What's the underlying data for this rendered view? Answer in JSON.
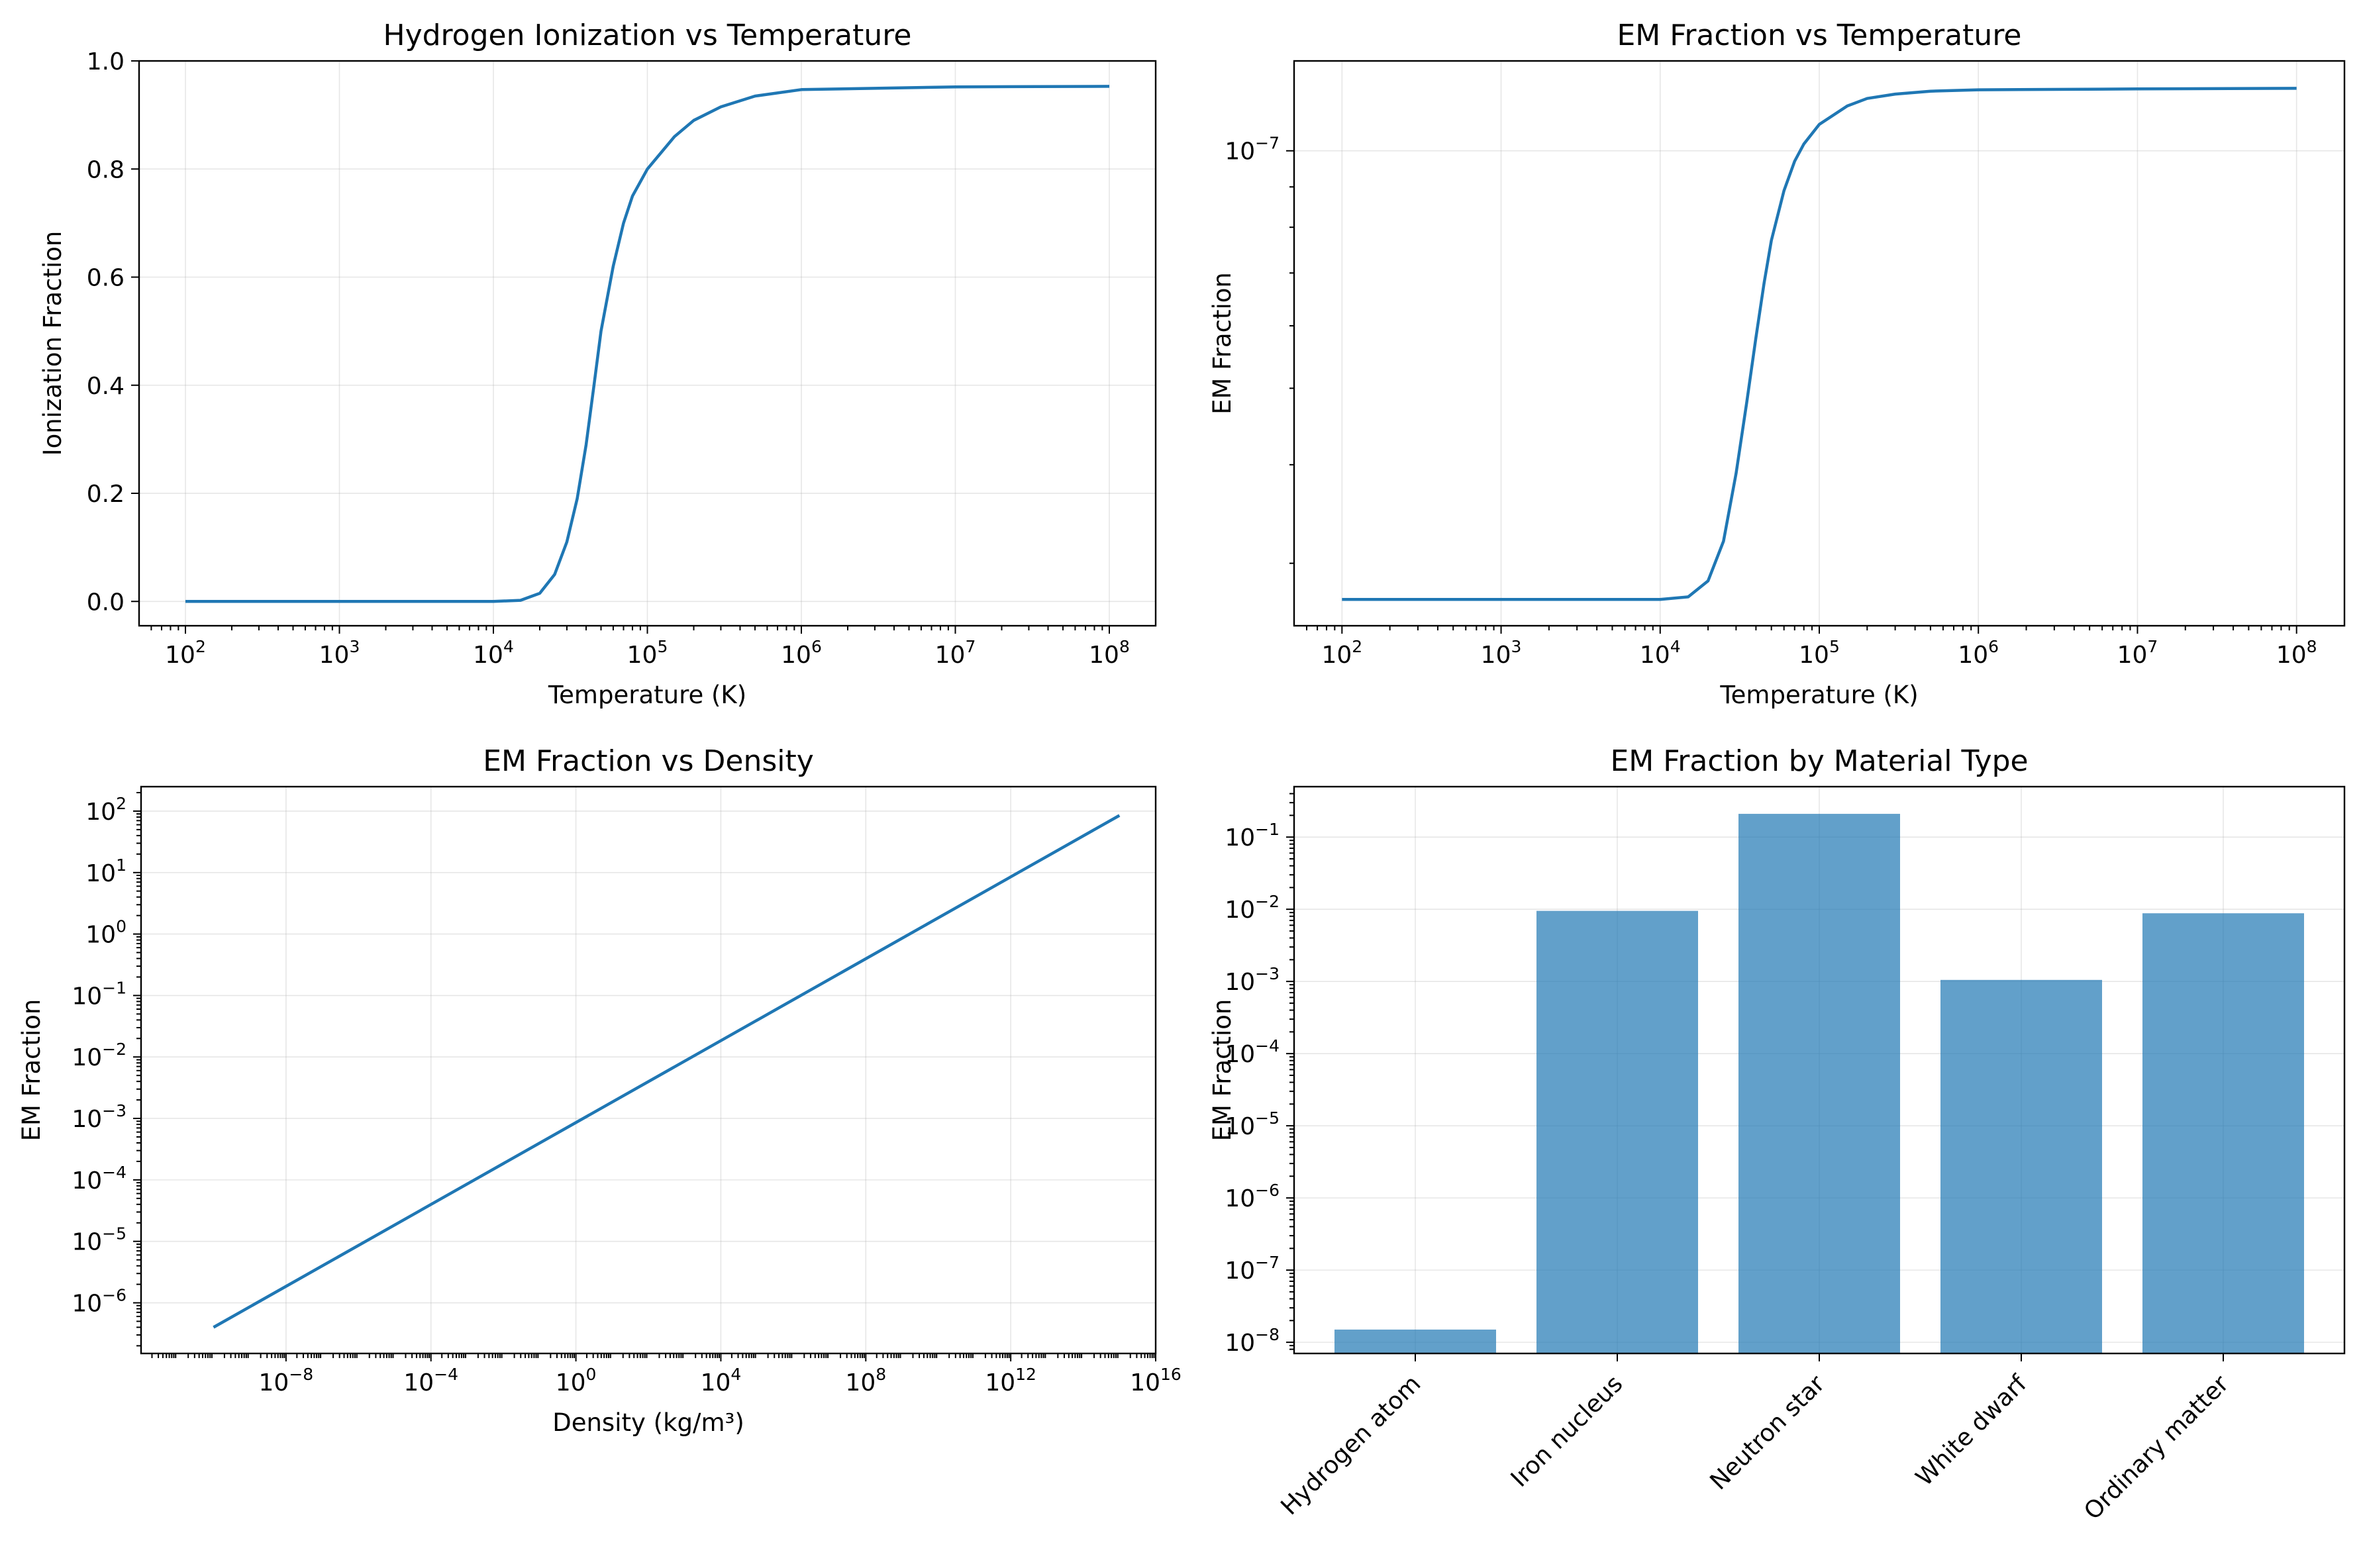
{
  "chart_data": [
    {
      "type": "line",
      "title": "Hydrogen Ionization vs Temperature",
      "xlabel": "Temperature (K)",
      "ylabel": "Ionization Fraction",
      "xscale": "log",
      "yscale": "linear",
      "xlim": [
        50,
        200000000
      ],
      "ylim": [
        -0.045,
        1.0
      ],
      "x_ticks": [
        {
          "base": "10",
          "exp": "2",
          "value": 100
        },
        {
          "base": "10",
          "exp": "3",
          "value": 1000
        },
        {
          "base": "10",
          "exp": "4",
          "value": 10000
        },
        {
          "base": "10",
          "exp": "5",
          "value": 100000
        },
        {
          "base": "10",
          "exp": "6",
          "value": 1000000
        },
        {
          "base": "10",
          "exp": "7",
          "value": 10000000
        },
        {
          "base": "10",
          "exp": "8",
          "value": 100000000
        }
      ],
      "y_ticks": [
        {
          "label": "0.0",
          "value": 0.0
        },
        {
          "label": "0.2",
          "value": 0.2
        },
        {
          "label": "0.4",
          "value": 0.4
        },
        {
          "label": "0.6",
          "value": 0.6
        },
        {
          "label": "0.8",
          "value": 0.8
        },
        {
          "label": "1.0",
          "value": 1.0
        }
      ],
      "grid": true,
      "series": [
        {
          "x": [
            100,
            1000,
            10000,
            15000,
            20000,
            25000,
            30000,
            35000,
            40000,
            45000,
            50000,
            60000,
            70000,
            80000,
            100000,
            150000,
            200000,
            300000,
            500000,
            1000000,
            10000000,
            100000000
          ],
          "y": [
            0,
            0,
            0,
            0.002,
            0.015,
            0.05,
            0.11,
            0.19,
            0.29,
            0.4,
            0.5,
            0.62,
            0.7,
            0.75,
            0.8,
            0.86,
            0.89,
            0.915,
            0.935,
            0.947,
            0.952,
            0.953
          ]
        }
      ]
    },
    {
      "type": "line",
      "title": "EM Fraction vs Temperature",
      "xlabel": "Temperature (K)",
      "ylabel": "EM Fraction",
      "xscale": "log",
      "yscale": "log",
      "xlim": [
        50,
        200000000
      ],
      "ylim": [
        2.5e-08,
        1.3e-07
      ],
      "x_ticks": [
        {
          "base": "10",
          "exp": "2",
          "value": 100
        },
        {
          "base": "10",
          "exp": "3",
          "value": 1000
        },
        {
          "base": "10",
          "exp": "4",
          "value": 10000
        },
        {
          "base": "10",
          "exp": "5",
          "value": 100000
        },
        {
          "base": "10",
          "exp": "6",
          "value": 1000000
        },
        {
          "base": "10",
          "exp": "7",
          "value": 10000000
        },
        {
          "base": "10",
          "exp": "8",
          "value": 100000000
        }
      ],
      "y_ticks": [
        {
          "base": "10",
          "exp": "−7",
          "value": 1e-07
        }
      ],
      "y_minor": [
        3e-08,
        4e-08,
        5e-08,
        6e-08,
        7e-08,
        8e-08,
        9e-08
      ],
      "grid": true,
      "series": [
        {
          "x": [
            100,
            1000,
            10000,
            15000,
            20000,
            25000,
            30000,
            35000,
            40000,
            45000,
            50000,
            60000,
            70000,
            80000,
            100000,
            150000,
            200000,
            300000,
            500000,
            1000000,
            10000000,
            100000000
          ],
          "y": [
            2.7e-08,
            2.7e-08,
            2.7e-08,
            2.72e-08,
            2.85e-08,
            3.2e-08,
            3.9e-08,
            4.8e-08,
            5.8e-08,
            6.8e-08,
            7.7e-08,
            8.9e-08,
            9.7e-08,
            1.02e-07,
            1.08e-07,
            1.14e-07,
            1.165e-07,
            1.18e-07,
            1.19e-07,
            1.195e-07,
            1.198e-07,
            1.2e-07
          ]
        }
      ]
    },
    {
      "type": "line",
      "title": "EM Fraction vs Density",
      "xlabel": "Density (kg/m³)",
      "ylabel": "EM Fraction",
      "xscale": "log",
      "yscale": "log",
      "xlim": [
        1e-12,
        1e+16
      ],
      "ylim": [
        1.5e-07,
        250
      ],
      "x_ticks": [
        {
          "base": "10",
          "exp": "−8",
          "value": 1e-08
        },
        {
          "base": "10",
          "exp": "−4",
          "value": 0.0001
        },
        {
          "base": "10",
          "exp": "0",
          "value": 1
        },
        {
          "base": "10",
          "exp": "4",
          "value": 10000.0
        },
        {
          "base": "10",
          "exp": "8",
          "value": 100000000.0
        },
        {
          "base": "10",
          "exp": "12",
          "value": 1000000000000.0
        },
        {
          "base": "10",
          "exp": "16",
          "value": 1e+16
        }
      ],
      "y_ticks": [
        {
          "base": "10",
          "exp": "−6",
          "value": 1e-06
        },
        {
          "base": "10",
          "exp": "−5",
          "value": 1e-05
        },
        {
          "base": "10",
          "exp": "−4",
          "value": 0.0001
        },
        {
          "base": "10",
          "exp": "−3",
          "value": 0.001
        },
        {
          "base": "10",
          "exp": "−2",
          "value": 0.01
        },
        {
          "base": "10",
          "exp": "−1",
          "value": 0.1
        },
        {
          "base": "10",
          "exp": "0",
          "value": 1
        },
        {
          "base": "10",
          "exp": "1",
          "value": 10
        },
        {
          "base": "10",
          "exp": "2",
          "value": 100
        }
      ],
      "grid": true,
      "series": [
        {
          "x": [
            1e-10,
            1000000000000000.0
          ],
          "y": [
            4e-07,
            85
          ]
        }
      ]
    },
    {
      "type": "bar",
      "title": "EM Fraction by Material Type",
      "xlabel": "",
      "ylabel": "EM Fraction",
      "yscale": "log",
      "ylim": [
        7e-09,
        0.5
      ],
      "categories": [
        "Hydrogen atom",
        "Iron nucleus",
        "Neutron star",
        "White dwarf",
        "Ordinary matter"
      ],
      "values": [
        1.5e-08,
        0.0095,
        0.21,
        0.00105,
        0.0088
      ],
      "y_ticks": [
        {
          "base": "10",
          "exp": "−8",
          "value": 1e-08
        },
        {
          "base": "10",
          "exp": "−7",
          "value": 1e-07
        },
        {
          "base": "10",
          "exp": "−6",
          "value": 1e-06
        },
        {
          "base": "10",
          "exp": "−5",
          "value": 1e-05
        },
        {
          "base": "10",
          "exp": "−4",
          "value": 0.0001
        },
        {
          "base": "10",
          "exp": "−3",
          "value": 0.001
        },
        {
          "base": "10",
          "exp": "−2",
          "value": 0.01
        },
        {
          "base": "10",
          "exp": "−1",
          "value": 0.1
        }
      ],
      "grid": true,
      "bar_color": "#1f77b4"
    }
  ]
}
